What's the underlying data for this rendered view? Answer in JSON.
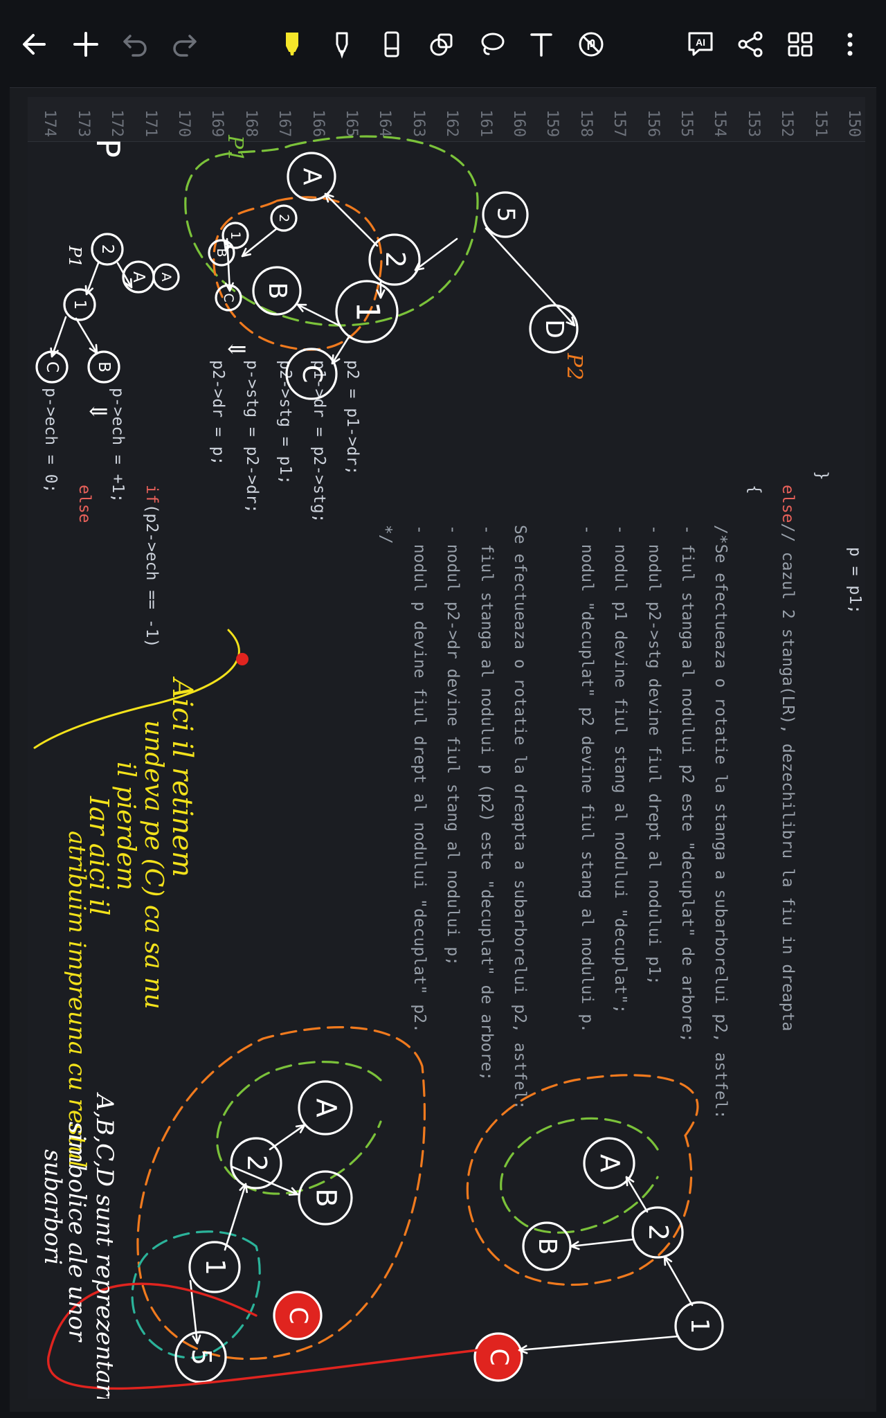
{
  "toolbar": {
    "left": [
      {
        "name": "back-icon"
      },
      {
        "name": "add-icon"
      },
      {
        "name": "undo-icon"
      },
      {
        "name": "redo-icon"
      }
    ],
    "center": [
      {
        "name": "highlighter-icon",
        "color": "#f5e62a"
      },
      {
        "name": "pen-icon"
      },
      {
        "name": "eraser-icon"
      },
      {
        "name": "shapes-icon"
      },
      {
        "name": "lasso-icon"
      },
      {
        "name": "text-icon"
      },
      {
        "name": "no-touch-icon"
      }
    ],
    "right": [
      {
        "name": "ai-icon",
        "label": "AI"
      },
      {
        "name": "share-icon"
      },
      {
        "name": "grid-view-icon"
      },
      {
        "name": "more-icon"
      }
    ]
  },
  "code": {
    "line_numbers": [
      "150",
      "151",
      "152",
      "153",
      "154",
      "155",
      "156",
      "157",
      "158",
      "159",
      "160",
      "161",
      "162",
      "163",
      "164",
      "165",
      "166",
      "167",
      "168",
      "169",
      "170",
      "171",
      "172",
      "173",
      "174"
    ],
    "lines": [
      {
        "n": 150,
        "text": "            p = p1;"
      },
      {
        "n": 151,
        "text": "        }"
      },
      {
        "n": 152,
        "kw": "else",
        "text": " // cazul 2 stanga(LR), dezechilibru la fiu in dreapta"
      },
      {
        "n": 153,
        "text": "        {"
      },
      {
        "n": 154,
        "comment": "/*Se efectueaza o rotatie la stanga a subarborelui p2, astfel:"
      },
      {
        "n": 155,
        "comment": " - fiul stanga al nodului p2 este \"decuplat\" de arbore;"
      },
      {
        "n": 156,
        "comment": " - nodul p2->stg devine fiul drept al nodului p1;"
      },
      {
        "n": 157,
        "comment": " - nodul p1 devine fiul stang al nodului \"decuplat\";"
      },
      {
        "n": 158,
        "comment": " - nodul \"decuplat\" p2 devine fiul stang al nodului p."
      },
      {
        "n": 159,
        "text": ""
      },
      {
        "n": 160,
        "comment": " Se efectueaza o rotatie la dreapta a subarborelui p2, astfel:"
      },
      {
        "n": 161,
        "comment": " - fiul stanga al nodului p (p2) este \"decuplat\" de arbore;"
      },
      {
        "n": 162,
        "comment": " - nodul p2->dr devine fiul stang al nodului p;"
      },
      {
        "n": 163,
        "comment": " - nodul p devine fiul drept al nodului \"decuplat\" p2."
      },
      {
        "n": 164,
        "comment": " */"
      },
      {
        "n": 165,
        "text": "            p2 = p1->dr;"
      },
      {
        "n": 166,
        "text": "            p1->dr = p2->stg;"
      },
      {
        "n": 167,
        "text": "            p2->stg = p1;"
      },
      {
        "n": 168,
        "text": "            p->stg = p2->dr;"
      },
      {
        "n": 169,
        "text": "            p2->dr = p;"
      },
      {
        "n": 170,
        "text": ""
      },
      {
        "n": 171,
        "kw": "if",
        "text": " (p2->ech == -1)"
      },
      {
        "n": 172,
        "text": "                p->ech = +1;"
      },
      {
        "n": 173,
        "kw": "else",
        "text": ""
      },
      {
        "n": 174,
        "text": "                p->ech = 0;"
      }
    ]
  },
  "notes": {
    "node_labels": {
      "a": "A",
      "b": "B",
      "c": "C",
      "d": "D",
      "n1": "1",
      "n2": "2",
      "n5": "5"
    },
    "pointer_labels": {
      "p": "P",
      "p1": "P1",
      "p2": "P2"
    },
    "yellow_note_1": [
      "Aici il retinem",
      "undeva pe (C) ca sa nu",
      "il pierdem"
    ],
    "yellow_note_2": [
      "Iar aici il",
      "atribuim impreuna cu restul"
    ],
    "white_note": [
      "A,B,C,D sunt reprezentarii",
      "simbolice ale unor",
      "subarbori"
    ]
  },
  "colors": {
    "ink_white": "#ffffff",
    "ink_yellow": "#f3e21b",
    "ink_green": "#7bc23a",
    "ink_orange": "#f07a1e",
    "ink_teal": "#2bb39a",
    "ink_red": "#e0241f",
    "keyword_red": "#e8615a"
  }
}
